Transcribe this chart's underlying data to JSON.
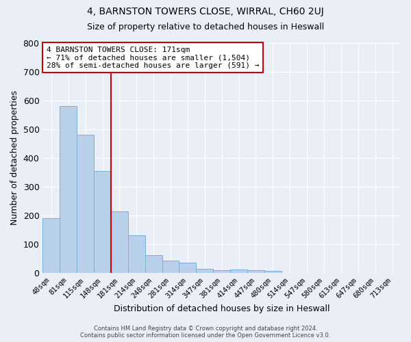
{
  "title": "4, BARNSTON TOWERS CLOSE, WIRRAL, CH60 2UJ",
  "subtitle": "Size of property relative to detached houses in Heswall",
  "xlabel": "Distribution of detached houses by size in Heswall",
  "ylabel": "Number of detached properties",
  "bar_labels": [
    "48sqm",
    "81sqm",
    "115sqm",
    "148sqm",
    "181sqm",
    "214sqm",
    "248sqm",
    "281sqm",
    "314sqm",
    "347sqm",
    "381sqm",
    "414sqm",
    "447sqm",
    "480sqm",
    "514sqm",
    "547sqm",
    "580sqm",
    "613sqm",
    "647sqm",
    "680sqm",
    "713sqm"
  ],
  "bar_values": [
    190,
    580,
    480,
    355,
    215,
    130,
    63,
    42,
    35,
    15,
    10,
    13,
    10,
    8,
    0,
    0,
    0,
    0,
    0,
    0,
    0
  ],
  "bar_color": "#b8d0ea",
  "bar_edge_color": "#7aafd4",
  "vline_x": 3.5,
  "vline_color": "#cc0000",
  "annotation_text": "4 BARNSTON TOWERS CLOSE: 171sqm\n← 71% of detached houses are smaller (1,504)\n28% of semi-detached houses are larger (591) →",
  "annotation_box_color": "#ffffff",
  "annotation_box_edge": "#cc0000",
  "ylim": [
    0,
    800
  ],
  "yticks": [
    0,
    100,
    200,
    300,
    400,
    500,
    600,
    700,
    800
  ],
  "background_color": "#eaeff7",
  "grid_color": "#ffffff",
  "title_fontsize": 10,
  "subtitle_fontsize": 9,
  "footer_line1": "Contains HM Land Registry data © Crown copyright and database right 2024.",
  "footer_line2": "Contains public sector information licensed under the Open Government Licence v3.0."
}
